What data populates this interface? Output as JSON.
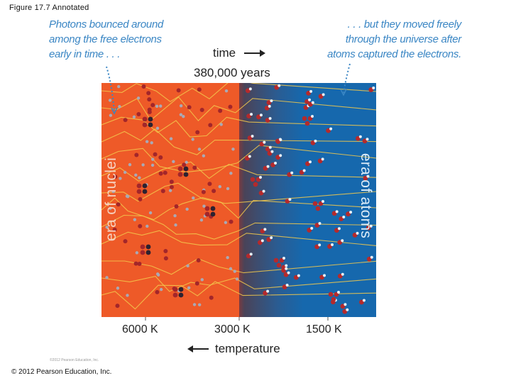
{
  "figure_title": "Figure 17.7 Annotated",
  "caption_left": [
    "Photons bounced around",
    "among the free electrons",
    "early in time . . ."
  ],
  "caption_right": [
    ". . . but they moved freely",
    "through the universe after",
    "atoms captured the electrons."
  ],
  "time_label": "time",
  "time_marker": "380,000 years",
  "era_left": "era of nuclei",
  "era_right": "era of atoms",
  "temperature_ticks": [
    "6000 K",
    "3000 K",
    "1500 K"
  ],
  "temperature_label": "temperature",
  "tiny_credit": "©2012 Pearson Education, Inc.",
  "copyright": "© 2012 Pearson Education, Inc.",
  "colors": {
    "caption": "#3a86c4",
    "nuclei_era": "#ee5a28",
    "atoms_era": "#1668ad",
    "photon": "#f2c94c",
    "electron": "#a9a9b5",
    "nucleus": "#a3262a",
    "oxygen_like": "#b42a2c",
    "hydrogen_like": "#e8f2fa"
  },
  "icons": {
    "time_arrow": "arrow-right-icon",
    "temperature_arrow": "arrow-left-icon"
  }
}
